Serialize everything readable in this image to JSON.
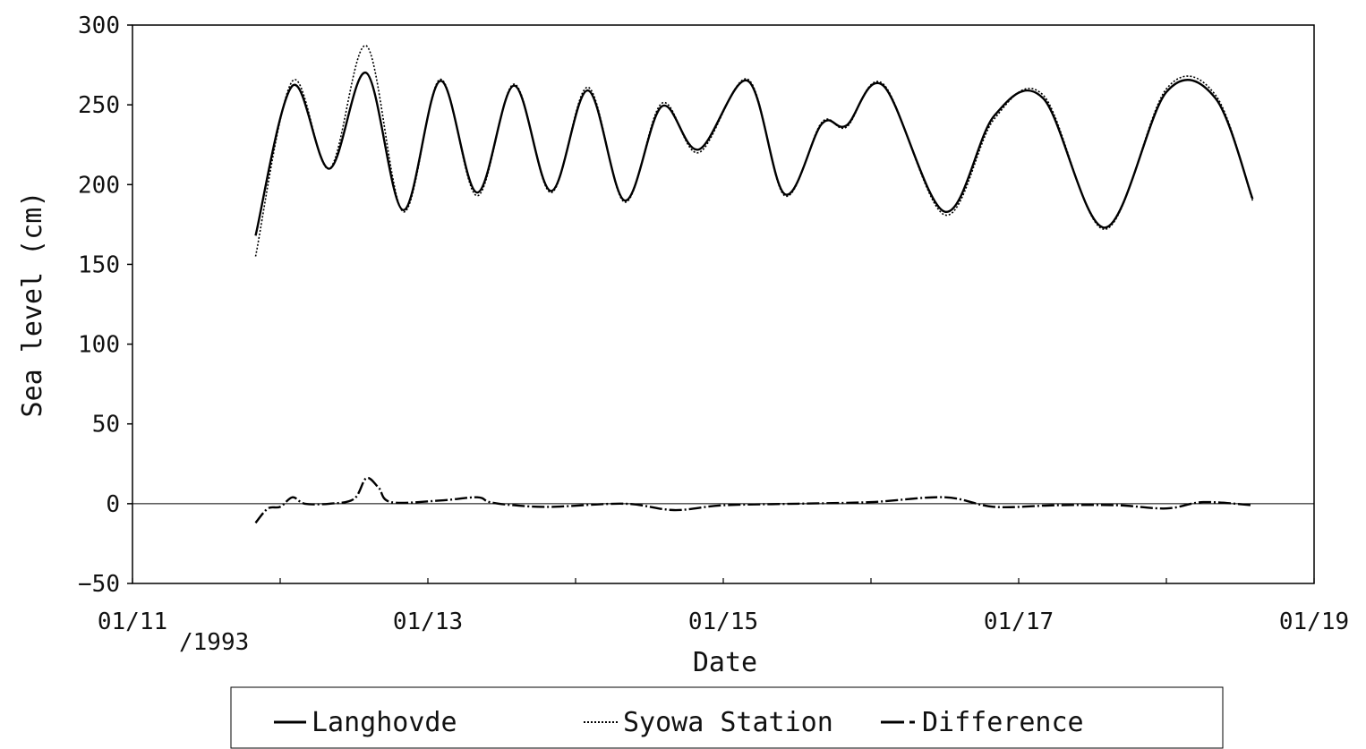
{
  "chart_data": {
    "type": "line",
    "title": "",
    "xlabel": "Date",
    "ylabel": "Sea level (cm)",
    "x_tick_labels": [
      "01/11",
      "01/13",
      "01/15",
      "01/17",
      "01/19"
    ],
    "x_year_label": "/1993",
    "x_range": [
      "1993-01-11",
      "1993-01-19"
    ],
    "ylim": [
      -50,
      300
    ],
    "y_ticks": [
      -50,
      0,
      50,
      100,
      150,
      200,
      250,
      300
    ],
    "grid": false,
    "legend_position": "bottom",
    "series": [
      {
        "name": "Langhovde",
        "style": "solid",
        "color": "#000000",
        "points": [
          [
            "1993-01-11 20:00",
            168
          ],
          [
            "1993-01-12 02:00",
            262
          ],
          [
            "1993-01-12 08:00",
            210
          ],
          [
            "1993-01-12 14:00",
            270
          ],
          [
            "1993-01-12 20:00",
            184
          ],
          [
            "1993-01-13 02:00",
            265
          ],
          [
            "1993-01-13 08:00",
            195
          ],
          [
            "1993-01-13 14:00",
            262
          ],
          [
            "1993-01-13 20:00",
            196
          ],
          [
            "1993-01-14 02:00",
            259
          ],
          [
            "1993-01-14 08:00",
            190
          ],
          [
            "1993-01-14 14:00",
            249
          ],
          [
            "1993-01-14 20:00",
            222
          ],
          [
            "1993-01-15 04:00",
            265
          ],
          [
            "1993-01-15 10:00",
            194
          ],
          [
            "1993-01-15 16:00",
            238
          ],
          [
            "1993-01-15 20:00",
            237
          ],
          [
            "1993-01-16 02:00",
            262
          ],
          [
            "1993-01-16 12:00",
            183
          ],
          [
            "1993-01-16 20:00",
            243
          ],
          [
            "1993-01-17 04:00",
            254
          ],
          [
            "1993-01-17 14:00",
            173
          ],
          [
            "1993-01-18 00:00",
            258
          ],
          [
            "1993-01-18 08:00",
            254
          ],
          [
            "1993-01-18 14:00",
            191
          ]
        ]
      },
      {
        "name": "Syowa Station",
        "style": "dotted",
        "color": "#000000",
        "points": [
          [
            "1993-01-11 20:00",
            155
          ],
          [
            "1993-01-12 02:00",
            265
          ],
          [
            "1993-01-12 08:00",
            210
          ],
          [
            "1993-01-12 14:00",
            287
          ],
          [
            "1993-01-12 20:00",
            183
          ],
          [
            "1993-01-13 02:00",
            266
          ],
          [
            "1993-01-13 08:00",
            193
          ],
          [
            "1993-01-13 14:00",
            263
          ],
          [
            "1993-01-13 20:00",
            195
          ],
          [
            "1993-01-14 02:00",
            261
          ],
          [
            "1993-01-14 08:00",
            189
          ],
          [
            "1993-01-14 14:00",
            251
          ],
          [
            "1993-01-14 20:00",
            220
          ],
          [
            "1993-01-15 04:00",
            266
          ],
          [
            "1993-01-15 10:00",
            193
          ],
          [
            "1993-01-15 16:00",
            239
          ],
          [
            "1993-01-15 20:00",
            236
          ],
          [
            "1993-01-16 02:00",
            263
          ],
          [
            "1993-01-16 12:00",
            181
          ],
          [
            "1993-01-16 20:00",
            241
          ],
          [
            "1993-01-17 04:00",
            256
          ],
          [
            "1993-01-17 14:00",
            172
          ],
          [
            "1993-01-18 00:00",
            260
          ],
          [
            "1993-01-18 08:00",
            256
          ],
          [
            "1993-01-18 14:00",
            190
          ]
        ]
      },
      {
        "name": "Difference",
        "style": "dash-dot",
        "color": "#000000",
        "points": [
          [
            "1993-01-11 20:00",
            -12
          ],
          [
            "1993-01-11 22:00",
            -3
          ],
          [
            "1993-01-12 00:00",
            -2
          ],
          [
            "1993-01-12 02:00",
            4
          ],
          [
            "1993-01-12 04:00",
            0
          ],
          [
            "1993-01-12 08:00",
            0
          ],
          [
            "1993-01-12 12:00",
            3
          ],
          [
            "1993-01-12 14:00",
            16
          ],
          [
            "1993-01-12 16:00",
            10
          ],
          [
            "1993-01-12 18:00",
            1
          ],
          [
            "1993-01-13 02:00",
            2
          ],
          [
            "1993-01-13 08:00",
            4
          ],
          [
            "1993-01-13 10:00",
            1
          ],
          [
            "1993-01-13 14:00",
            -1
          ],
          [
            "1993-01-13 20:00",
            -2
          ],
          [
            "1993-01-14 08:00",
            0
          ],
          [
            "1993-01-14 16:00",
            -4
          ],
          [
            "1993-01-15 00:00",
            -1
          ],
          [
            "1993-01-15 12:00",
            0
          ],
          [
            "1993-01-16 00:00",
            1
          ],
          [
            "1993-01-16 12:00",
            4
          ],
          [
            "1993-01-16 20:00",
            -2
          ],
          [
            "1993-01-17 06:00",
            -1
          ],
          [
            "1993-01-17 16:00",
            -1
          ],
          [
            "1993-01-18 00:00",
            -3
          ],
          [
            "1993-01-18 06:00",
            1
          ],
          [
            "1993-01-18 14:00",
            -1
          ]
        ]
      }
    ]
  }
}
